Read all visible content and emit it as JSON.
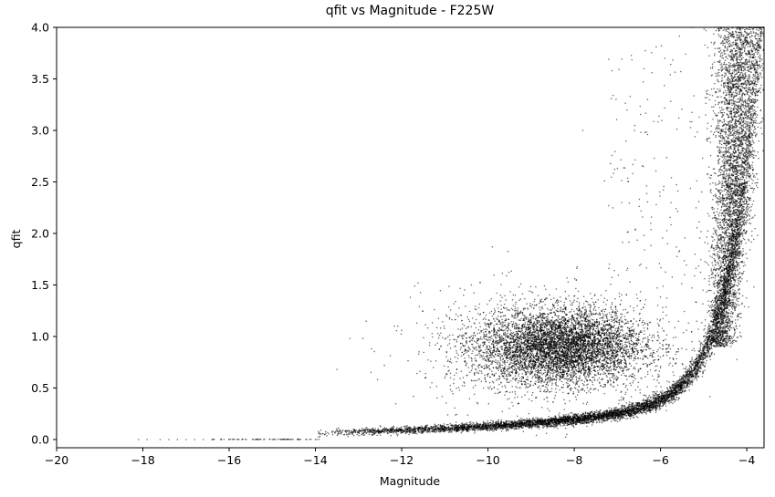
{
  "chart_data": {
    "type": "scatter",
    "title": "qfit vs Magnitude - F225W",
    "xlabel": "Magnitude",
    "ylabel": "qfit",
    "xlim": [
      -20,
      -3.6
    ],
    "ylim": [
      -0.08,
      4.0
    ],
    "xticks": [
      -20,
      -18,
      -16,
      -14,
      -12,
      -10,
      -8,
      -6,
      -4
    ],
    "xtick_labels": [
      "−20",
      "−18",
      "−16",
      "−14",
      "−12",
      "−10",
      "−8",
      "−6",
      "−4"
    ],
    "yticks": [
      0.0,
      0.5,
      1.0,
      1.5,
      2.0,
      2.5,
      3.0,
      3.5,
      4.0
    ],
    "ytick_labels": [
      "0.0",
      "0.5",
      "1.0",
      "1.5",
      "2.0",
      "2.5",
      "3.0",
      "3.5",
      "4.0"
    ],
    "grid": false,
    "marker_color": "#000000",
    "series": [
      {
        "description_components": [
          {
            "component": "zero_floor",
            "x_range": [
              -18.1,
              -13.9
            ],
            "y": 0.0
          },
          {
            "component": "rising_sequence",
            "x_range": [
              -14.0,
              -3.6
            ],
            "y_at": {
              "-14": 0.02,
              "-10": 0.06,
              "-7": 0.18,
              "-5.5": 0.45,
              "-5": 0.8,
              "-4.5": 1.8,
              "-4.2": 3.5
            }
          },
          {
            "component": "blob",
            "center": [
              -8.3,
              0.9
            ],
            "x_range": [
              -12,
              -6.5
            ],
            "y_range": [
              0.4,
              1.55
            ]
          },
          {
            "component": "vertical_plume",
            "x_range": [
              -5.3,
              -3.6
            ],
            "y_range": [
              1.0,
              4.0
            ]
          }
        ],
        "points": [
          [
            -18.1,
            0.0
          ],
          [
            -17.9,
            0.0
          ],
          [
            -17.6,
            0.0
          ],
          [
            -17.4,
            0.0
          ],
          [
            -17.2,
            0.0
          ],
          [
            -17.0,
            0.0
          ],
          [
            -16.8,
            0.0
          ],
          [
            -16.6,
            0.0
          ],
          [
            -16.4,
            0.0
          ],
          [
            -16.2,
            0.0
          ],
          [
            -16.0,
            0.0
          ],
          [
            -15.8,
            0.0
          ],
          [
            -15.6,
            0.0
          ],
          [
            -15.4,
            0.0
          ],
          [
            -15.2,
            0.0
          ],
          [
            -15.0,
            0.0
          ],
          [
            -14.8,
            0.0
          ],
          [
            -14.6,
            0.0
          ],
          [
            -14.4,
            0.0
          ],
          [
            -14.2,
            0.0
          ],
          [
            -14.0,
            0.0
          ],
          [
            -13.5,
            0.68
          ],
          [
            -13.2,
            0.98
          ],
          [
            -12.9,
            0.98
          ],
          [
            -12.7,
            0.88
          ],
          [
            -12.4,
            0.72
          ],
          [
            -12.0,
            1.06
          ],
          [
            -11.8,
            1.38
          ],
          [
            -11.3,
            0.55
          ],
          [
            -10.4,
            0.17
          ],
          [
            -9.9,
            1.87
          ],
          [
            -7.1,
            3.34
          ],
          [
            -6.9,
            2.3
          ],
          [
            -7.2,
            3.69
          ],
          [
            -7.0,
            2.63
          ],
          [
            -6.4,
            2.65
          ],
          [
            -6.3,
            2.96
          ],
          [
            -6.2,
            3.56
          ],
          [
            -6.1,
            3.81
          ],
          [
            -7.2,
            2.27
          ],
          [
            -7.3,
            2.51
          ],
          [
            -6.6,
            3.0
          ],
          [
            -7.8,
            3.0
          ],
          [
            -6.3,
            3.3
          ],
          [
            -5.9,
            3.7
          ]
        ]
      }
    ]
  }
}
